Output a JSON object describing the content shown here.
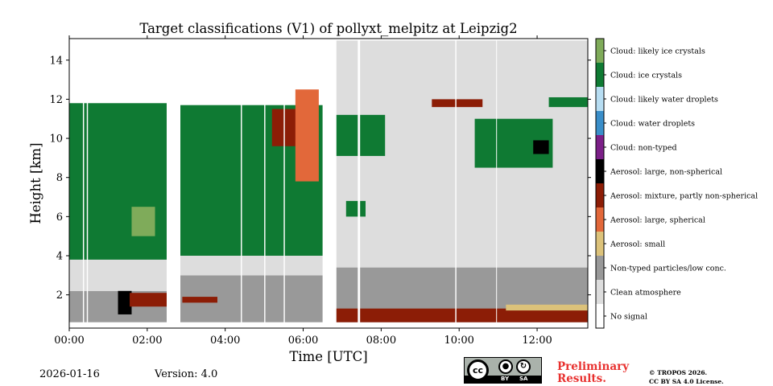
{
  "chart_data": {
    "type": "heatmap",
    "title": "Target classifications (V1) of pollyxt_melpitz at Leipzig2",
    "xlabel": "Time [UTC]",
    "ylabel": "Height [km]",
    "xlim_hours": [
      0,
      13.3
    ],
    "ylim_km": [
      0.3,
      15.1
    ],
    "x_ticks": [
      {
        "value": 0,
        "label": "00:00"
      },
      {
        "value": 2,
        "label": "02:00"
      },
      {
        "value": 4,
        "label": "04:00"
      },
      {
        "value": 6,
        "label": "06:00"
      },
      {
        "value": 8,
        "label": "08:00"
      },
      {
        "value": 10,
        "label": "10:00"
      },
      {
        "value": 12,
        "label": "12:00"
      }
    ],
    "y_ticks": [
      {
        "value": 2,
        "label": "2"
      },
      {
        "value": 4,
        "label": "4"
      },
      {
        "value": 6,
        "label": "6"
      },
      {
        "value": 8,
        "label": "8"
      },
      {
        "value": 10,
        "label": "10"
      },
      {
        "value": 12,
        "label": "12"
      },
      {
        "value": 14,
        "label": "14"
      }
    ],
    "classes": [
      {
        "id": 11,
        "label": "Cloud: likely ice crystals",
        "color": "#7fab5a"
      },
      {
        "id": 10,
        "label": "Cloud: ice crystals",
        "color": "#0f7a33"
      },
      {
        "id": 9,
        "label": "Cloud: likely water droplets",
        "color": "#b7ddf2"
      },
      {
        "id": 8,
        "label": "Cloud: water droplets",
        "color": "#3a8ec9"
      },
      {
        "id": 7,
        "label": "Cloud: non-typed",
        "color": "#7b1f87"
      },
      {
        "id": 6,
        "label": "Aerosol: large, non-spherical",
        "color": "#000000"
      },
      {
        "id": 5,
        "label": "Aerosol: mixture, partly non-spherical",
        "color": "#8c1d06"
      },
      {
        "id": 4,
        "label": "Aerosol: large, spherical",
        "color": "#e2683a"
      },
      {
        "id": 3,
        "label": "Aerosol: small",
        "color": "#dcc27a"
      },
      {
        "id": 2,
        "label": "Non-typed particles/low conc.",
        "color": "#999999"
      },
      {
        "id": 1,
        "label": "Clean atmosphere",
        "color": "#dddddd"
      },
      {
        "id": 0,
        "label": "No signal",
        "color": "#ffffff"
      }
    ],
    "data_gaps_hours": [
      [
        2.5,
        2.85
      ],
      [
        6.5,
        6.85
      ],
      [
        0.35,
        0.38
      ],
      [
        0.45,
        0.48
      ],
      [
        4.4,
        4.43
      ],
      [
        5.0,
        5.03
      ],
      [
        5.5,
        5.53
      ],
      [
        7.4,
        7.46
      ],
      [
        9.9,
        9.93
      ],
      [
        10.95,
        10.97
      ]
    ],
    "regions": [
      {
        "class": 2,
        "t": [
          0,
          2.5
        ],
        "h": [
          0.6,
          2.2
        ]
      },
      {
        "class": 1,
        "t": [
          0,
          2.5
        ],
        "h": [
          2.2,
          5.8
        ]
      },
      {
        "class": 10,
        "t": [
          0,
          2.5
        ],
        "h": [
          3.8,
          11.8
        ]
      },
      {
        "class": 11,
        "t": [
          1.6,
          2.2
        ],
        "h": [
          5.0,
          6.5
        ]
      },
      {
        "class": 6,
        "t": [
          1.25,
          1.6
        ],
        "h": [
          1.0,
          2.2
        ]
      },
      {
        "class": 5,
        "t": [
          1.55,
          2.5
        ],
        "h": [
          1.4,
          2.1
        ]
      },
      {
        "class": 2,
        "t": [
          2.85,
          6.5
        ],
        "h": [
          0.6,
          3.0
        ]
      },
      {
        "class": 1,
        "t": [
          2.85,
          6.5
        ],
        "h": [
          3.0,
          6.5
        ]
      },
      {
        "class": 10,
        "t": [
          2.85,
          6.5
        ],
        "h": [
          4.0,
          11.7
        ]
      },
      {
        "class": 5,
        "t": [
          2.9,
          3.8
        ],
        "h": [
          1.6,
          1.9
        ]
      },
      {
        "class": 5,
        "t": [
          5.2,
          6.3
        ],
        "h": [
          9.6,
          11.5
        ]
      },
      {
        "class": 4,
        "t": [
          5.8,
          6.4
        ],
        "h": [
          7.8,
          12.5
        ]
      },
      {
        "class": 2,
        "t": [
          6.85,
          13.3
        ],
        "h": [
          0.6,
          3.4
        ]
      },
      {
        "class": 1,
        "t": [
          6.85,
          13.3
        ],
        "h": [
          3.4,
          15.0
        ]
      },
      {
        "class": 5,
        "t": [
          6.85,
          13.3
        ],
        "h": [
          0.6,
          1.3
        ]
      },
      {
        "class": 3,
        "t": [
          11.2,
          13.3
        ],
        "h": [
          1.2,
          1.5
        ]
      },
      {
        "class": 10,
        "t": [
          6.85,
          8.1
        ],
        "h": [
          9.1,
          11.2
        ]
      },
      {
        "class": 10,
        "t": [
          7.1,
          7.6
        ],
        "h": [
          6.0,
          6.8
        ]
      },
      {
        "class": 10,
        "t": [
          10.4,
          12.4
        ],
        "h": [
          8.5,
          11.0
        ]
      },
      {
        "class": 6,
        "t": [
          11.9,
          12.3
        ],
        "h": [
          9.2,
          9.9
        ]
      },
      {
        "class": 10,
        "t": [
          12.3,
          13.3
        ],
        "h": [
          11.6,
          12.1
        ]
      },
      {
        "class": 5,
        "t": [
          9.3,
          10.6
        ],
        "h": [
          11.6,
          12.0
        ]
      }
    ]
  },
  "footer": {
    "date": "2026-01-16",
    "version": "Version: 4.0",
    "license_labels": {
      "cc": "cc",
      "by": "BY",
      "sa": "SA"
    },
    "preliminary_line1": "Preliminary",
    "preliminary_line2": "Results.",
    "copyright_line1": "© TROPOS 2026.",
    "copyright_line2": "CC BY SA 4.0 License."
  }
}
